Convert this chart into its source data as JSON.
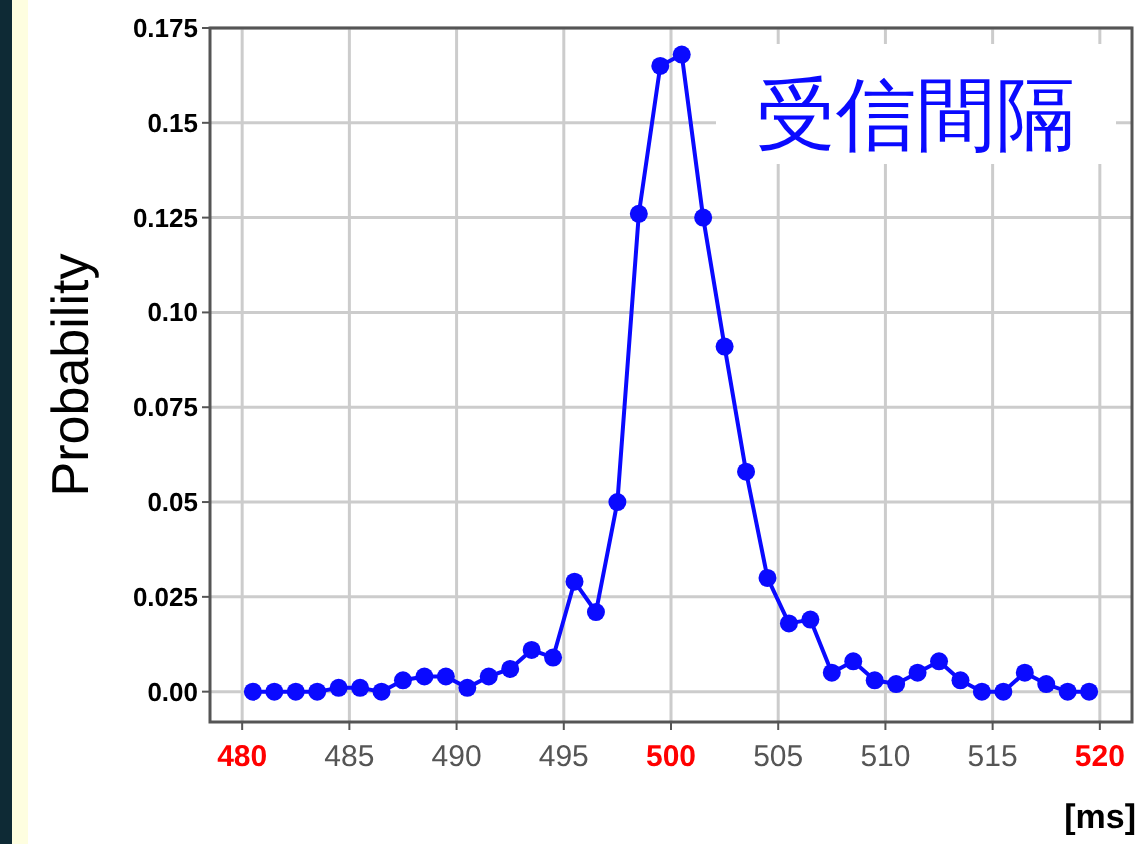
{
  "chart_data": {
    "type": "line",
    "title": "受信間隔",
    "xlabel": "[ms]",
    "ylabel": "Probability",
    "x": [
      480.5,
      481.5,
      482.5,
      483.5,
      484.5,
      485.5,
      486.5,
      487.5,
      488.5,
      489.5,
      490.5,
      491.5,
      492.5,
      493.5,
      494.5,
      495.5,
      496.5,
      497.5,
      498.5,
      499.5,
      500.5,
      501.5,
      502.5,
      503.5,
      504.5,
      505.5,
      506.5,
      507.5,
      508.5,
      509.5,
      510.5,
      511.5,
      512.5,
      513.5,
      514.5,
      515.5,
      516.5,
      517.5,
      518.5,
      519.5
    ],
    "series": [
      {
        "color": "#0a0aff",
        "values": [
          0,
          0,
          0,
          0,
          0.001,
          0.001,
          0,
          0.003,
          0.004,
          0.004,
          0.001,
          0.004,
          0.006,
          0.011,
          0.009,
          0.029,
          0.021,
          0.05,
          0.126,
          0.165,
          0.168,
          0.125,
          0.091,
          0.058,
          0.03,
          0.018,
          0.019,
          0.005,
          0.008,
          0.003,
          0.002,
          0.005,
          0.008,
          0.003,
          0,
          0,
          0.005,
          0.002,
          0,
          0
        ]
      }
    ],
    "xlim": [
      478.5,
      521.5
    ],
    "xticks": [
      480,
      485,
      490,
      495,
      500,
      505,
      510,
      515,
      520
    ],
    "ylim": [
      -0.008,
      0.175
    ],
    "yticks": [
      {
        "value": 0,
        "label": "0.00"
      },
      0.025,
      {
        "value": 0.05,
        "label": "0.05"
      },
      0.075,
      {
        "value": 0.1,
        "label": "0.10"
      },
      0.125,
      0.15,
      0.175
    ],
    "grid": true,
    "marker": "circle",
    "line_style": "solid"
  }
}
